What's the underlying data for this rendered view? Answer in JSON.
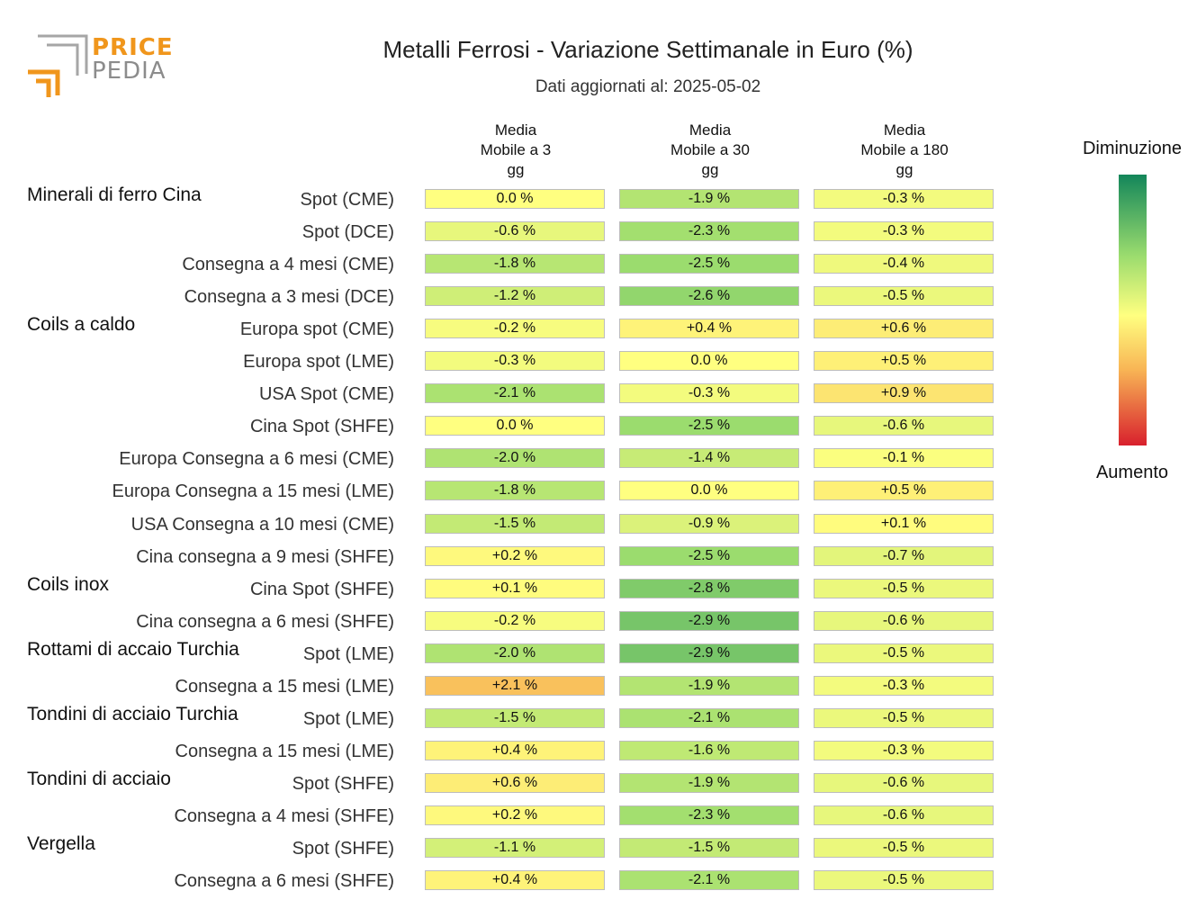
{
  "brand": {
    "price": "PRICE",
    "pedia": "PEDIA",
    "orange": "#f0961c",
    "grey": "#9a9a9a"
  },
  "title": "Metalli Ferrosi - Variazione Settimanale in Euro (%)",
  "subtitle": "Dati aggiornati al: 2025-05-02",
  "columns": [
    "Media\nMobile a 3\ngg",
    "Media\nMobile a 30\ngg",
    "Media\nMobile a 180\ngg"
  ],
  "legend": {
    "top": "Diminuzione",
    "bottom": "Aumento"
  },
  "colors": {
    "strong_decrease": "#13865a",
    "neutral": "#ffff80",
    "strong_increase": "#d8202d"
  },
  "chart_data": {
    "type": "heatmap",
    "unit": "%",
    "groups": [
      {
        "name": "Minerali di ferro Cina",
        "rows": [
          {
            "label": "Spot (CME)",
            "values": [
              0.0,
              -1.9,
              -0.3
            ],
            "texts": [
              "0.0 %",
              "-1.9 %",
              "-0.3 %"
            ]
          },
          {
            "label": "Spot (DCE)",
            "values": [
              -0.6,
              -2.3,
              -0.3
            ],
            "texts": [
              "-0.6 %",
              "-2.3 %",
              "-0.3 %"
            ]
          },
          {
            "label": "Consegna a 4 mesi (CME)",
            "values": [
              -1.8,
              -2.5,
              -0.4
            ],
            "texts": [
              "-1.8 %",
              "-2.5 %",
              "-0.4 %"
            ]
          },
          {
            "label": "Consegna a 3 mesi (DCE)",
            "values": [
              -1.2,
              -2.6,
              -0.5
            ],
            "texts": [
              "-1.2 %",
              "-2.6 %",
              "-0.5 %"
            ]
          }
        ]
      },
      {
        "name": "Coils a caldo",
        "rows": [
          {
            "label": "Europa spot (CME)",
            "values": [
              -0.2,
              0.4,
              0.6
            ],
            "texts": [
              "-0.2 %",
              "+0.4 %",
              "+0.6 %"
            ]
          },
          {
            "label": "Europa spot (LME)",
            "values": [
              -0.3,
              0.0,
              0.5
            ],
            "texts": [
              "-0.3 %",
              "0.0 %",
              "+0.5 %"
            ]
          },
          {
            "label": "USA Spot (CME)",
            "values": [
              -2.1,
              -0.3,
              0.9
            ],
            "texts": [
              "-2.1 %",
              "-0.3 %",
              "+0.9 %"
            ]
          },
          {
            "label": "Cina Spot (SHFE)",
            "values": [
              0.0,
              -2.5,
              -0.6
            ],
            "texts": [
              "0.0 %",
              "-2.5 %",
              "-0.6 %"
            ]
          },
          {
            "label": "Europa Consegna a 6 mesi (CME)",
            "values": [
              -2.0,
              -1.4,
              -0.1
            ],
            "texts": [
              "-2.0 %",
              "-1.4 %",
              "-0.1 %"
            ]
          },
          {
            "label": "Europa Consegna a 15 mesi (LME)",
            "values": [
              -1.8,
              0.0,
              0.5
            ],
            "texts": [
              "-1.8 %",
              "0.0 %",
              "+0.5 %"
            ]
          },
          {
            "label": "USA Consegna a 10 mesi (CME)",
            "values": [
              -1.5,
              -0.9,
              0.1
            ],
            "texts": [
              "-1.5 %",
              "-0.9 %",
              "+0.1 %"
            ]
          },
          {
            "label": "Cina consegna a 9 mesi (SHFE)",
            "values": [
              0.2,
              -2.5,
              -0.7
            ],
            "texts": [
              "+0.2 %",
              "-2.5 %",
              "-0.7 %"
            ]
          }
        ]
      },
      {
        "name": "Coils inox",
        "rows": [
          {
            "label": "Cina Spot (SHFE)",
            "values": [
              0.1,
              -2.8,
              -0.5
            ],
            "texts": [
              "+0.1 %",
              "-2.8 %",
              "-0.5 %"
            ]
          },
          {
            "label": "Cina consegna a 6 mesi (SHFE)",
            "values": [
              -0.2,
              -2.9,
              -0.6
            ],
            "texts": [
              "-0.2 %",
              "-2.9 %",
              "-0.6 %"
            ]
          }
        ]
      },
      {
        "name": "Rottami di accaio Turchia",
        "rows": [
          {
            "label": "Spot (LME)",
            "values": [
              -2.0,
              -2.9,
              -0.5
            ],
            "texts": [
              "-2.0 %",
              "-2.9 %",
              "-0.5 %"
            ]
          },
          {
            "label": "Consegna a 15 mesi (LME)",
            "values": [
              2.1,
              -1.9,
              -0.3
            ],
            "texts": [
              "+2.1 %",
              "-1.9 %",
              "-0.3 %"
            ]
          }
        ]
      },
      {
        "name": "Tondini di acciaio Turchia",
        "rows": [
          {
            "label": "Spot (LME)",
            "values": [
              -1.5,
              -2.1,
              -0.5
            ],
            "texts": [
              "-1.5 %",
              "-2.1 %",
              "-0.5 %"
            ]
          },
          {
            "label": "Consegna a 15 mesi (LME)",
            "values": [
              0.4,
              -1.6,
              -0.3
            ],
            "texts": [
              "+0.4 %",
              "-1.6 %",
              "-0.3 %"
            ]
          }
        ]
      },
      {
        "name": "Tondini di acciaio",
        "rows": [
          {
            "label": "Spot (SHFE)",
            "values": [
              0.6,
              -1.9,
              -0.6
            ],
            "texts": [
              "+0.6 %",
              "-1.9 %",
              "-0.6 %"
            ]
          },
          {
            "label": "Consegna a 4 mesi (SHFE)",
            "values": [
              0.2,
              -2.3,
              -0.6
            ],
            "texts": [
              "+0.2 %",
              "-2.3 %",
              "-0.6 %"
            ]
          }
        ]
      },
      {
        "name": "Vergella",
        "rows": [
          {
            "label": "Spot (SHFE)",
            "values": [
              -1.1,
              -1.5,
              -0.5
            ],
            "texts": [
              "-1.1 %",
              "-1.5 %",
              "-0.5 %"
            ]
          },
          {
            "label": "Consegna a 6 mesi (SHFE)",
            "values": [
              0.4,
              -2.1,
              -0.5
            ],
            "texts": [
              "+0.4 %",
              "-2.1 %",
              "-0.5 %"
            ]
          }
        ]
      }
    ]
  }
}
